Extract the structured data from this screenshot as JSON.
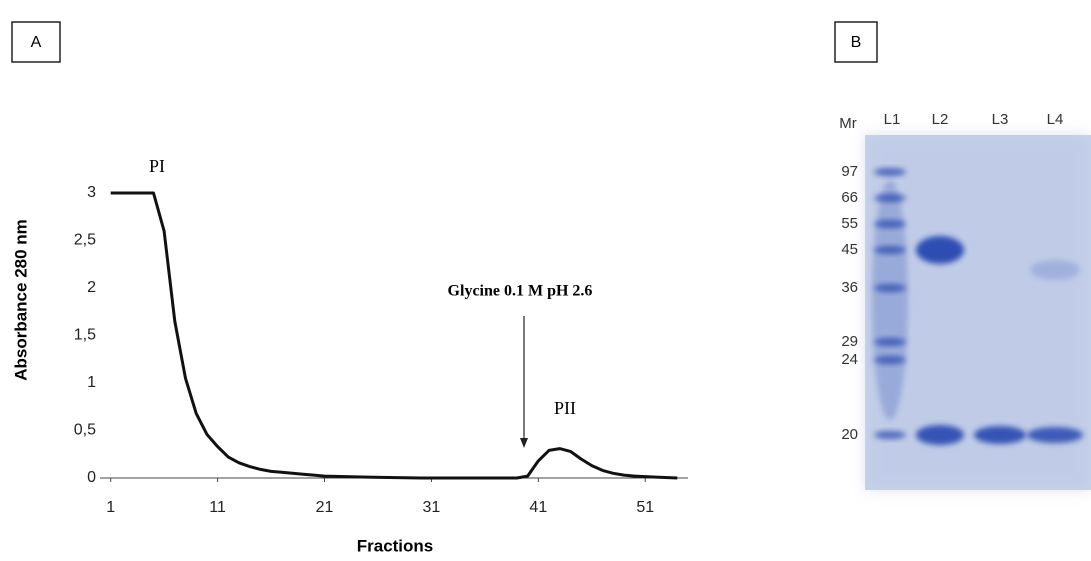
{
  "panel_labels": [
    "A",
    "B"
  ],
  "chart_data": {
    "type": "line",
    "xlabel": "Fractions",
    "ylabel": "Absorbance 280 nm",
    "annotations": [
      "PI",
      "PII",
      "Glycine 0.1 M pH 2.6"
    ],
    "x": [
      1,
      5,
      6,
      7,
      8,
      9,
      10,
      11,
      12,
      13,
      14,
      15,
      16,
      17,
      18,
      19,
      20,
      21,
      25,
      30,
      39,
      40,
      41,
      42,
      43,
      44,
      45,
      46,
      47,
      48,
      49,
      50,
      52,
      54
    ],
    "series": [
      {
        "name": "Absorbance",
        "color": "#111111",
        "values": [
          3,
          3,
          2.6,
          1.65,
          1.05,
          0.68,
          0.46,
          0.33,
          0.22,
          0.16,
          0.12,
          0.09,
          0.07,
          0.06,
          0.05,
          0.04,
          0.03,
          0.02,
          0.01,
          0,
          0,
          0.02,
          0.18,
          0.29,
          0.31,
          0.28,
          0.2,
          0.13,
          0.08,
          0.05,
          0.03,
          0.02,
          0.01,
          0
        ]
      }
    ],
    "xlim": [
      0,
      55
    ],
    "ylim": [
      0,
      3
    ],
    "xticks": [
      1,
      11,
      21,
      31,
      41,
      51
    ],
    "yticks": [
      0,
      {
        "value": 0.5,
        "label": "0,5"
      },
      1,
      {
        "value": 1.5,
        "label": "1,5"
      },
      2,
      {
        "value": 2.5,
        "label": "2,5"
      },
      3
    ]
  },
  "gel": {
    "header": "Mr",
    "lanes": [
      "L1",
      "L2",
      "L3",
      "L4"
    ],
    "markers": [
      "97",
      "66",
      "55",
      "45",
      "36",
      "29",
      "24",
      "20"
    ]
  }
}
